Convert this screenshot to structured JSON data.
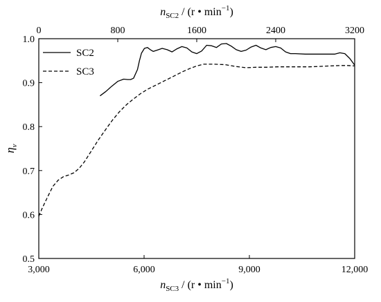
{
  "chart_data": {
    "type": "line",
    "title": "",
    "axes": {
      "bottom": {
        "label_italic": "n",
        "label_sub": "SC3",
        "label_rest": " / (r • min",
        "label_sup": "−1",
        "label_close": ")",
        "range": [
          3000,
          12000
        ],
        "ticks": [
          3000,
          6000,
          9000,
          12000
        ],
        "tick_labels": [
          "3,000",
          "6,000",
          "9,000",
          "12,000"
        ]
      },
      "top": {
        "label_italic": "n",
        "label_sub": "SC2",
        "label_rest": " / (r • min",
        "label_sup": "−1",
        "label_close": ")",
        "range": [
          0,
          3200
        ],
        "ticks": [
          0,
          800,
          1600,
          2400,
          3200
        ],
        "tick_labels": [
          "0",
          "800",
          "1600",
          "2400",
          "3200"
        ]
      },
      "left": {
        "label_italic": "η",
        "label_sub": "v",
        "range": [
          0.5,
          1.0
        ],
        "ticks": [
          0.5,
          0.6,
          0.7,
          0.8,
          0.9,
          1.0
        ],
        "tick_labels": [
          "0.5",
          "0.6",
          "0.7",
          "0.8",
          "0.9",
          "1.0"
        ]
      }
    },
    "grid": false,
    "legend_position": "top-left",
    "series": [
      {
        "name": "SC2",
        "style": "solid",
        "x_axis": "top",
        "x": [
          620,
          680,
          740,
          800,
          860,
          900,
          930,
          960,
          1000,
          1020,
          1040,
          1070,
          1100,
          1130,
          1160,
          1200,
          1250,
          1300,
          1350,
          1400,
          1450,
          1500,
          1550,
          1600,
          1650,
          1700,
          1750,
          1800,
          1850,
          1900,
          1950,
          2000,
          2050,
          2100,
          2150,
          2200,
          2250,
          2300,
          2350,
          2400,
          2450,
          2500,
          2550,
          2600,
          2700,
          2800,
          2900,
          3000,
          3050,
          3100,
          3150,
          3200
        ],
        "y": [
          0.87,
          0.88,
          0.892,
          0.903,
          0.908,
          0.907,
          0.907,
          0.91,
          0.93,
          0.95,
          0.967,
          0.978,
          0.98,
          0.975,
          0.971,
          0.974,
          0.978,
          0.975,
          0.97,
          0.977,
          0.982,
          0.979,
          0.97,
          0.966,
          0.972,
          0.985,
          0.984,
          0.98,
          0.988,
          0.989,
          0.983,
          0.975,
          0.971,
          0.974,
          0.981,
          0.985,
          0.979,
          0.975,
          0.98,
          0.982,
          0.979,
          0.97,
          0.966,
          0.966,
          0.965,
          0.965,
          0.965,
          0.965,
          0.968,
          0.966,
          0.955,
          0.94
        ]
      },
      {
        "name": "SC3",
        "style": "dashed",
        "x_axis": "bottom",
        "x": [
          3000,
          3100,
          3250,
          3400,
          3550,
          3700,
          3850,
          4000,
          4150,
          4300,
          4500,
          4700,
          4900,
          5100,
          5300,
          5500,
          5700,
          5900,
          6100,
          6300,
          6500,
          6700,
          6900,
          7100,
          7300,
          7500,
          7700,
          8000,
          8300,
          8600,
          8900,
          9200,
          9500,
          9800,
          10100,
          10400,
          10700,
          11000,
          11300,
          11600,
          11800,
          12000
        ],
        "y": [
          0.596,
          0.615,
          0.64,
          0.664,
          0.678,
          0.686,
          0.69,
          0.695,
          0.705,
          0.72,
          0.745,
          0.77,
          0.793,
          0.815,
          0.834,
          0.85,
          0.863,
          0.875,
          0.885,
          0.893,
          0.901,
          0.909,
          0.917,
          0.925,
          0.932,
          0.938,
          0.942,
          0.942,
          0.941,
          0.937,
          0.934,
          0.935,
          0.935,
          0.936,
          0.936,
          0.936,
          0.936,
          0.937,
          0.938,
          0.939,
          0.939,
          0.938
        ]
      }
    ]
  }
}
